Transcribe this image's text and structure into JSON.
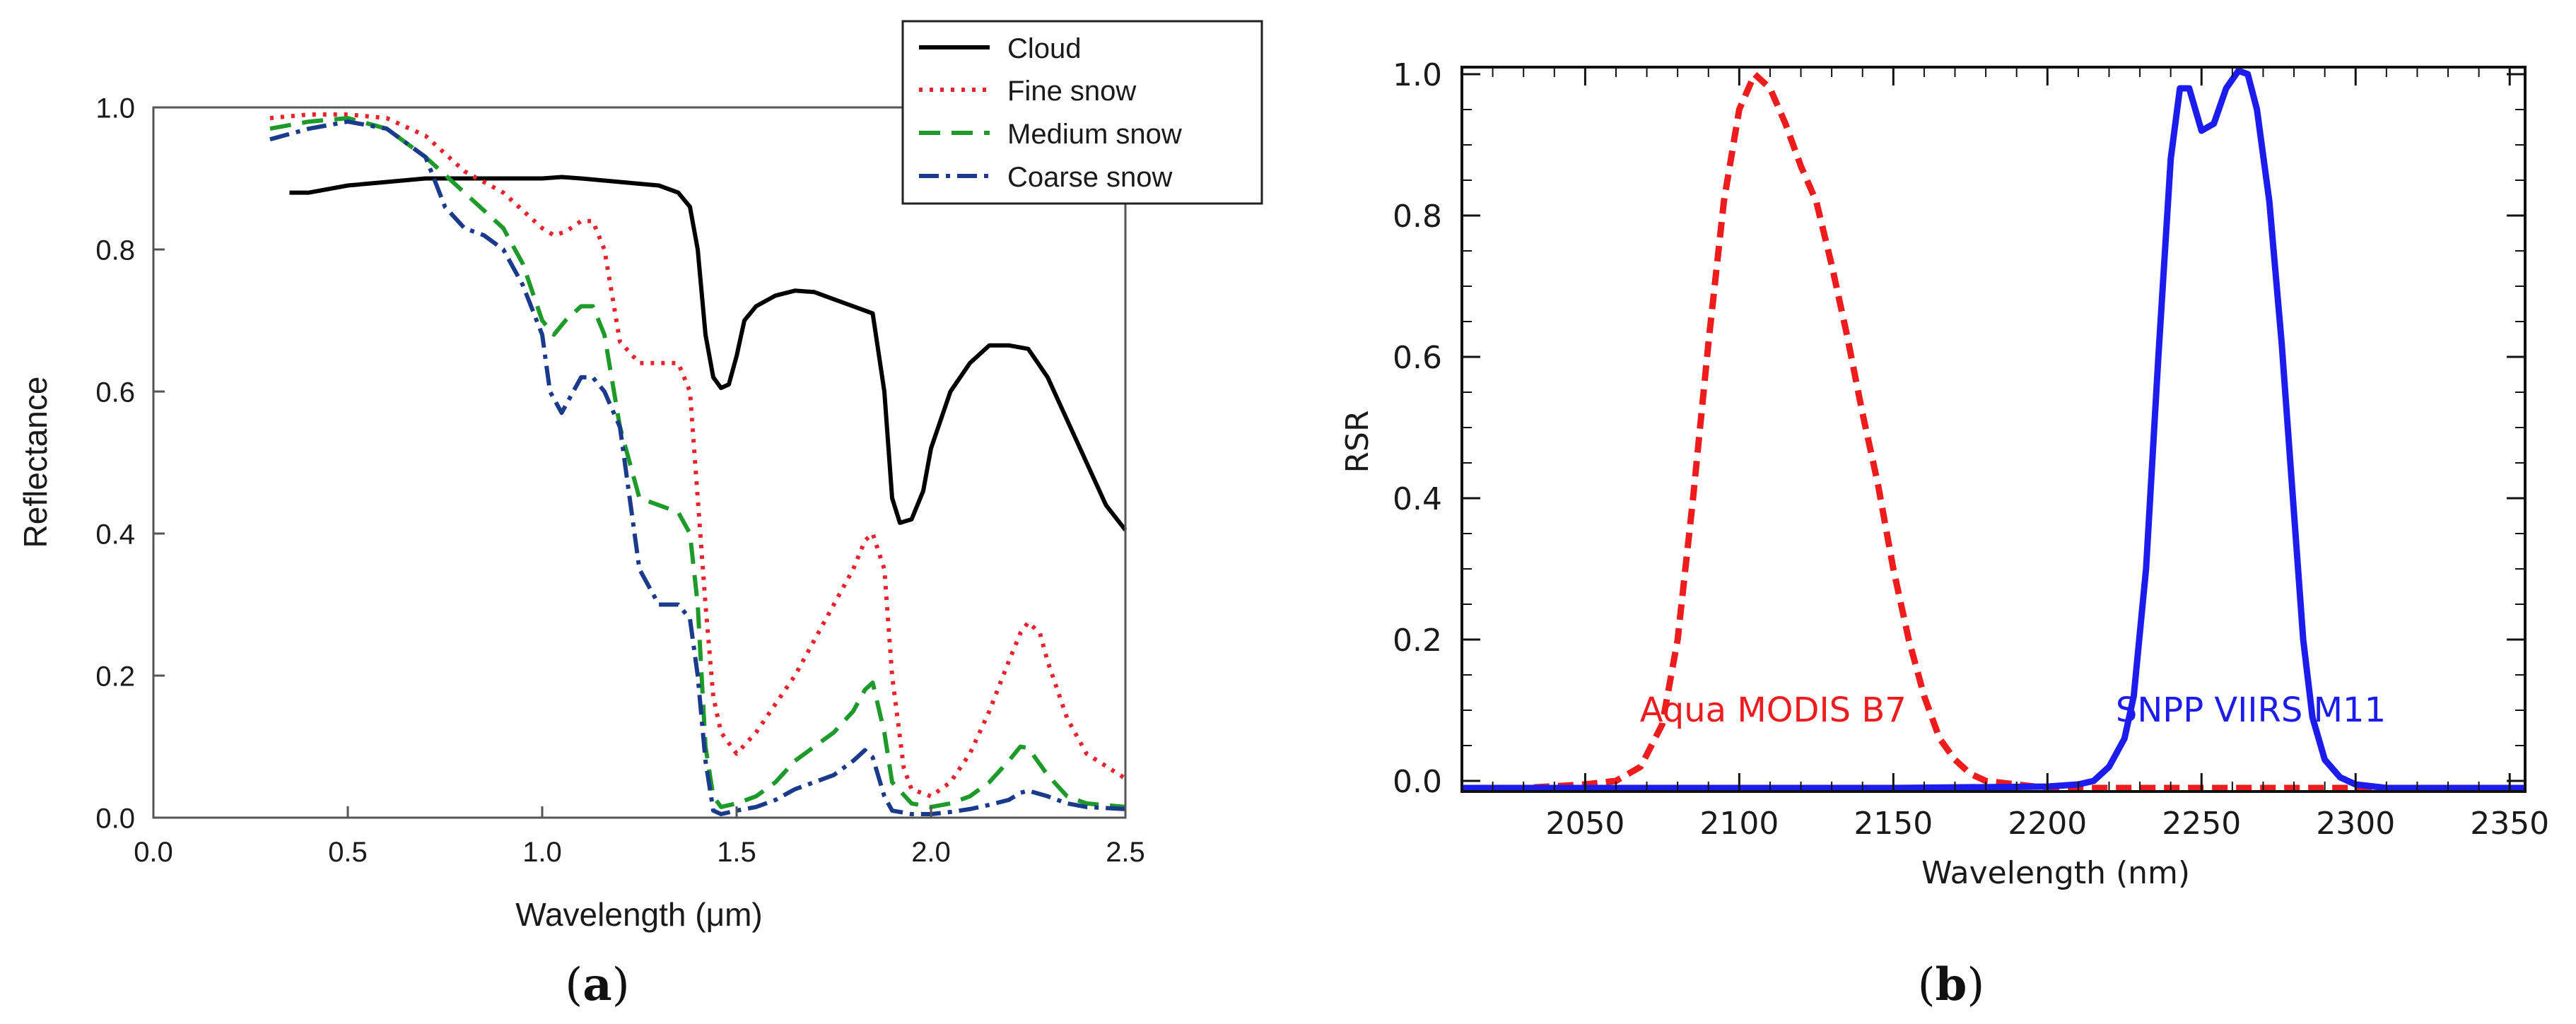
{
  "chart_data": [
    {
      "type": "line",
      "panel_label": "(a)",
      "panel_letter": "a",
      "xlabel": "Wavelength (μm)",
      "ylabel": "Reflectance",
      "xlim": [
        0.0,
        2.5
      ],
      "ylim": [
        0.0,
        1.0
      ],
      "xticks": [
        "0.0",
        "0.5",
        "1.0",
        "1.5",
        "2.0",
        "2.5"
      ],
      "yticks": [
        "0.0",
        "0.2",
        "0.4",
        "0.6",
        "0.8",
        "1.0"
      ],
      "legend_position": "top-right",
      "series": [
        {
          "name": "Cloud",
          "color": "#000000",
          "style": "solid",
          "x": [
            0.35,
            0.4,
            0.5,
            0.6,
            0.7,
            0.8,
            0.9,
            1.0,
            1.05,
            1.1,
            1.2,
            1.3,
            1.35,
            1.38,
            1.4,
            1.42,
            1.44,
            1.46,
            1.48,
            1.5,
            1.52,
            1.55,
            1.6,
            1.65,
            1.7,
            1.75,
            1.8,
            1.85,
            1.88,
            1.9,
            1.92,
            1.95,
            1.98,
            2.0,
            2.05,
            2.1,
            2.15,
            2.2,
            2.25,
            2.3,
            2.35,
            2.4,
            2.45,
            2.5
          ],
          "y": [
            0.88,
            0.88,
            0.89,
            0.895,
            0.9,
            0.9,
            0.9,
            0.9,
            0.902,
            0.9,
            0.895,
            0.89,
            0.88,
            0.86,
            0.8,
            0.68,
            0.62,
            0.605,
            0.61,
            0.65,
            0.7,
            0.72,
            0.735,
            0.742,
            0.74,
            0.73,
            0.72,
            0.71,
            0.6,
            0.45,
            0.415,
            0.42,
            0.46,
            0.52,
            0.6,
            0.64,
            0.665,
            0.665,
            0.66,
            0.62,
            0.56,
            0.5,
            0.44,
            0.405
          ]
        },
        {
          "name": "Fine snow",
          "color": "#e8232a",
          "style": "dotted",
          "x": [
            0.3,
            0.4,
            0.5,
            0.6,
            0.7,
            0.8,
            0.9,
            1.0,
            1.03,
            1.06,
            1.1,
            1.13,
            1.16,
            1.2,
            1.25,
            1.3,
            1.35,
            1.38,
            1.4,
            1.42,
            1.44,
            1.46,
            1.5,
            1.55,
            1.6,
            1.65,
            1.7,
            1.75,
            1.8,
            1.83,
            1.85,
            1.88,
            1.9,
            1.93,
            1.95,
            2.0,
            2.05,
            2.1,
            2.15,
            2.2,
            2.23,
            2.25,
            2.28,
            2.3,
            2.35,
            2.4,
            2.5
          ],
          "y": [
            0.985,
            0.99,
            0.99,
            0.985,
            0.96,
            0.91,
            0.88,
            0.83,
            0.82,
            0.825,
            0.84,
            0.84,
            0.8,
            0.67,
            0.64,
            0.64,
            0.64,
            0.6,
            0.45,
            0.3,
            0.17,
            0.12,
            0.09,
            0.12,
            0.16,
            0.2,
            0.25,
            0.3,
            0.35,
            0.39,
            0.4,
            0.35,
            0.2,
            0.07,
            0.04,
            0.03,
            0.05,
            0.09,
            0.15,
            0.22,
            0.26,
            0.275,
            0.26,
            0.22,
            0.14,
            0.09,
            0.055
          ]
        },
        {
          "name": "Medium snow",
          "color": "#1e9a2a",
          "style": "dashed",
          "x": [
            0.3,
            0.4,
            0.5,
            0.6,
            0.7,
            0.8,
            0.9,
            0.95,
            1.0,
            1.03,
            1.06,
            1.1,
            1.13,
            1.16,
            1.2,
            1.25,
            1.3,
            1.35,
            1.38,
            1.4,
            1.42,
            1.44,
            1.46,
            1.5,
            1.55,
            1.6,
            1.65,
            1.7,
            1.75,
            1.8,
            1.83,
            1.85,
            1.88,
            1.9,
            1.95,
            2.0,
            2.05,
            2.1,
            2.15,
            2.2,
            2.23,
            2.25,
            2.3,
            2.35,
            2.4,
            2.5
          ],
          "y": [
            0.97,
            0.98,
            0.985,
            0.97,
            0.93,
            0.88,
            0.83,
            0.78,
            0.7,
            0.68,
            0.7,
            0.72,
            0.72,
            0.68,
            0.55,
            0.45,
            0.44,
            0.43,
            0.4,
            0.3,
            0.1,
            0.03,
            0.015,
            0.02,
            0.03,
            0.05,
            0.08,
            0.1,
            0.12,
            0.15,
            0.18,
            0.19,
            0.12,
            0.05,
            0.02,
            0.015,
            0.02,
            0.03,
            0.05,
            0.08,
            0.1,
            0.098,
            0.06,
            0.03,
            0.02,
            0.015
          ]
        },
        {
          "name": "Coarse snow",
          "color": "#1a3a8c",
          "style": "dashdot",
          "x": [
            0.3,
            0.4,
            0.5,
            0.6,
            0.7,
            0.75,
            0.8,
            0.85,
            0.9,
            0.95,
            1.0,
            1.02,
            1.05,
            1.08,
            1.1,
            1.13,
            1.16,
            1.2,
            1.25,
            1.3,
            1.35,
            1.38,
            1.4,
            1.42,
            1.44,
            1.46,
            1.5,
            1.55,
            1.6,
            1.65,
            1.7,
            1.75,
            1.8,
            1.83,
            1.85,
            1.88,
            1.9,
            1.95,
            2.0,
            2.05,
            2.1,
            2.15,
            2.2,
            2.23,
            2.25,
            2.3,
            2.35,
            2.4,
            2.5
          ],
          "y": [
            0.955,
            0.97,
            0.98,
            0.97,
            0.93,
            0.86,
            0.83,
            0.82,
            0.8,
            0.75,
            0.68,
            0.6,
            0.57,
            0.6,
            0.62,
            0.62,
            0.6,
            0.55,
            0.35,
            0.3,
            0.3,
            0.28,
            0.2,
            0.08,
            0.01,
            0.005,
            0.01,
            0.015,
            0.025,
            0.04,
            0.05,
            0.06,
            0.08,
            0.095,
            0.085,
            0.03,
            0.01,
            0.005,
            0.005,
            0.008,
            0.012,
            0.018,
            0.025,
            0.035,
            0.038,
            0.03,
            0.02,
            0.015,
            0.012
          ]
        }
      ]
    },
    {
      "type": "line",
      "panel_label": "(b)",
      "panel_letter": "b",
      "xlabel": "Wavelength (nm)",
      "ylabel": "RSR",
      "xlim": [
        2010,
        2355
      ],
      "ylim": [
        -0.015,
        1.01
      ],
      "xticks": [
        "2050",
        "2100",
        "2150",
        "2200",
        "2250",
        "2300",
        "2350"
      ],
      "yticks": [
        "0.0",
        "0.2",
        "0.4",
        "0.6",
        "0.8",
        "1.0"
      ],
      "annotations": [
        {
          "text": "Aqua MODIS B7",
          "color": "#ee1c1c",
          "at": [
            2111,
            0.1
          ]
        },
        {
          "text": "SNPP VIIRS M11",
          "color": "#1c1cee",
          "at": [
            2266,
            0.1
          ]
        }
      ],
      "series": [
        {
          "name": "Aqua MODIS B7",
          "color": "#ee1c1c",
          "style": "dashed",
          "x": [
            2010,
            2030,
            2050,
            2060,
            2068,
            2075,
            2080,
            2085,
            2090,
            2095,
            2100,
            2105,
            2110,
            2115,
            2120,
            2125,
            2130,
            2135,
            2140,
            2145,
            2150,
            2155,
            2160,
            2165,
            2170,
            2175,
            2180,
            2190,
            2200,
            2220,
            2260,
            2300,
            2355
          ],
          "y": [
            -0.01,
            -0.01,
            -0.005,
            0.0,
            0.02,
            0.08,
            0.2,
            0.4,
            0.62,
            0.82,
            0.95,
            1.0,
            0.98,
            0.93,
            0.87,
            0.82,
            0.73,
            0.63,
            0.52,
            0.42,
            0.3,
            0.2,
            0.12,
            0.06,
            0.03,
            0.01,
            0.0,
            -0.005,
            -0.01,
            -0.01,
            -0.01,
            -0.01,
            -0.01
          ]
        },
        {
          "name": "SNPP VIIRS M11",
          "color": "#1c1cee",
          "style": "solid",
          "x": [
            2010,
            2150,
            2200,
            2210,
            2215,
            2220,
            2225,
            2228,
            2232,
            2236,
            2240,
            2243,
            2246,
            2250,
            2254,
            2258,
            2262,
            2265,
            2268,
            2272,
            2276,
            2280,
            2283,
            2286,
            2290,
            2295,
            2300,
            2310,
            2355
          ],
          "y": [
            -0.01,
            -0.01,
            -0.008,
            -0.005,
            0.0,
            0.02,
            0.06,
            0.12,
            0.3,
            0.6,
            0.88,
            0.98,
            0.98,
            0.92,
            0.93,
            0.98,
            1.005,
            1.0,
            0.95,
            0.82,
            0.62,
            0.38,
            0.2,
            0.09,
            0.03,
            0.005,
            -0.005,
            -0.01,
            -0.01
          ]
        }
      ]
    }
  ]
}
